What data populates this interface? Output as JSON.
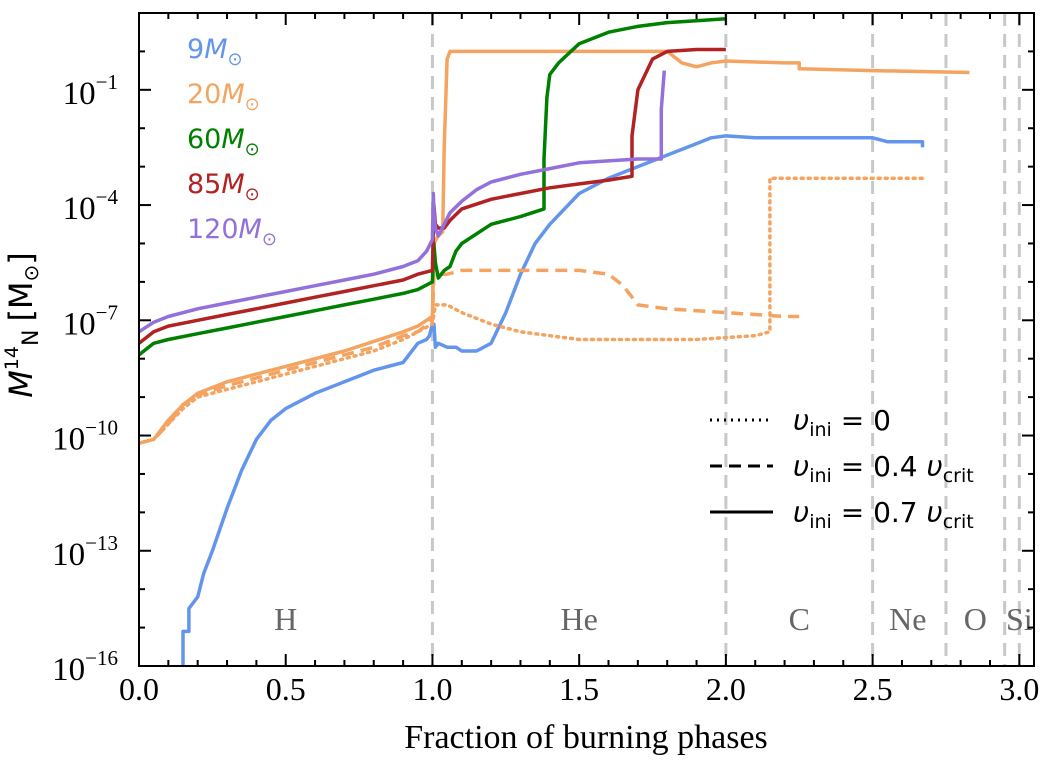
{
  "chart_data": {
    "type": "line",
    "title": "",
    "xlabel": "Fraction of burning phases",
    "ylabel": {
      "main": "M",
      "sub_sup": "14",
      "sub": "N",
      "unit": "[M",
      "unit_sub": "⊙",
      "close": "]"
    },
    "xlim": [
      0.0,
      3.05
    ],
    "ylim_log10": [
      -16,
      1
    ],
    "x_ticks": [
      {
        "v": 0.0,
        "label": "0.0"
      },
      {
        "v": 0.5,
        "label": "0.5"
      },
      {
        "v": 1.0,
        "label": "1.0"
      },
      {
        "v": 1.5,
        "label": "1.5"
      },
      {
        "v": 2.0,
        "label": "2.0"
      },
      {
        "v": 2.5,
        "label": "2.5"
      },
      {
        "v": 3.0,
        "label": "3.0"
      }
    ],
    "y_ticks": [
      {
        "v": -1,
        "base": "10",
        "exp": "−1"
      },
      {
        "v": -4,
        "base": "10",
        "exp": "−4"
      },
      {
        "v": -7,
        "base": "10",
        "exp": "−7"
      },
      {
        "v": -10,
        "base": "10",
        "exp": "−10"
      },
      {
        "v": -13,
        "base": "10",
        "exp": "−13"
      },
      {
        "v": -16,
        "base": "10",
        "exp": "−16"
      }
    ],
    "phase_boundaries": [
      1.0,
      2.0,
      2.5,
      2.75,
      2.95,
      3.0
    ],
    "phase_labels": [
      {
        "x": 0.5,
        "label": "H"
      },
      {
        "x": 1.5,
        "label": "He"
      },
      {
        "x": 2.25,
        "label": "C"
      },
      {
        "x": 2.62,
        "label": "Ne"
      },
      {
        "x": 2.85,
        "label": "O"
      },
      {
        "x": 3.0,
        "label": "Si"
      }
    ],
    "colors": {
      "m9": "#6495ED",
      "m20": "#F4A460",
      "m60": "#008000",
      "m85": "#B22222",
      "m120": "#9370DB",
      "boundary": "#c8c8c8",
      "phase_text": "#666666"
    },
    "mass_legend": [
      {
        "num": "9",
        "color": "#6495ED"
      },
      {
        "num": "20",
        "color": "#F4A460"
      },
      {
        "num": "60",
        "color": "#008000"
      },
      {
        "num": "85",
        "color": "#B22222"
      },
      {
        "num": "120",
        "color": "#9370DB"
      }
    ],
    "mass_unit": {
      "m": "M",
      "sub": "⊙"
    },
    "style_legend": [
      {
        "style": "dotted",
        "lhs": "υ",
        "lhs_sub": "ini",
        "eq": " = 0",
        "rhs": "",
        "rhs_sub": ""
      },
      {
        "style": "dashed",
        "lhs": "υ",
        "lhs_sub": "ini",
        "eq": " = 0.4 ",
        "rhs": "υ",
        "rhs_sub": "crit"
      },
      {
        "style": "solid",
        "lhs": "υ",
        "lhs_sub": "ini",
        "eq": " = 0.7 ",
        "rhs": "υ",
        "rhs_sub": "crit"
      }
    ],
    "series": [
      {
        "name": "9 Msun, v=0.7",
        "color": "#6495ED",
        "style": "solid",
        "points": [
          [
            0.15,
            -17
          ],
          [
            0.15,
            -15.1
          ],
          [
            0.17,
            -15.1
          ],
          [
            0.17,
            -14.5
          ],
          [
            0.2,
            -14.2
          ],
          [
            0.22,
            -13.6
          ],
          [
            0.25,
            -13.0
          ],
          [
            0.3,
            -11.9
          ],
          [
            0.35,
            -10.9
          ],
          [
            0.4,
            -10.1
          ],
          [
            0.45,
            -9.6
          ],
          [
            0.5,
            -9.3
          ],
          [
            0.6,
            -8.9
          ],
          [
            0.7,
            -8.6
          ],
          [
            0.8,
            -8.3
          ],
          [
            0.9,
            -8.1
          ],
          [
            0.95,
            -7.6
          ],
          [
            0.98,
            -7.5
          ],
          [
            0.99,
            -7.4
          ],
          [
            1.0,
            -7.1
          ],
          [
            1.005,
            -7.1
          ],
          [
            1.01,
            -7.7
          ],
          [
            1.02,
            -7.6
          ],
          [
            1.05,
            -7.7
          ],
          [
            1.08,
            -7.7
          ],
          [
            1.1,
            -7.8
          ],
          [
            1.15,
            -7.8
          ],
          [
            1.2,
            -7.6
          ],
          [
            1.25,
            -6.8
          ],
          [
            1.3,
            -5.8
          ],
          [
            1.35,
            -5.0
          ],
          [
            1.4,
            -4.5
          ],
          [
            1.5,
            -3.7
          ],
          [
            1.6,
            -3.3
          ],
          [
            1.7,
            -3.0
          ],
          [
            1.8,
            -2.7
          ],
          [
            1.9,
            -2.4
          ],
          [
            1.95,
            -2.25
          ],
          [
            2.0,
            -2.2
          ],
          [
            2.1,
            -2.25
          ],
          [
            2.3,
            -2.25
          ],
          [
            2.5,
            -2.25
          ],
          [
            2.55,
            -2.35
          ],
          [
            2.67,
            -2.35
          ],
          [
            2.67,
            -2.5
          ]
        ]
      },
      {
        "name": "20 Msun, v=0",
        "color": "#F4A460",
        "style": "dotted",
        "points": [
          [
            0.0,
            -10.2
          ],
          [
            0.05,
            -10.1
          ],
          [
            0.1,
            -9.7
          ],
          [
            0.15,
            -9.3
          ],
          [
            0.2,
            -9.0
          ],
          [
            0.3,
            -8.8
          ],
          [
            0.4,
            -8.6
          ],
          [
            0.5,
            -8.4
          ],
          [
            0.6,
            -8.2
          ],
          [
            0.7,
            -8.0
          ],
          [
            0.8,
            -7.8
          ],
          [
            0.9,
            -7.5
          ],
          [
            0.95,
            -7.3
          ],
          [
            1.0,
            -7.1
          ],
          [
            1.01,
            -6.6
          ],
          [
            1.05,
            -6.6
          ],
          [
            1.1,
            -6.8
          ],
          [
            1.2,
            -7.1
          ],
          [
            1.3,
            -7.3
          ],
          [
            1.4,
            -7.4
          ],
          [
            1.5,
            -7.5
          ],
          [
            1.6,
            -7.5
          ],
          [
            1.7,
            -7.5
          ],
          [
            1.8,
            -7.5
          ],
          [
            1.9,
            -7.5
          ],
          [
            2.0,
            -7.45
          ],
          [
            2.1,
            -7.4
          ],
          [
            2.15,
            -7.3
          ],
          [
            2.15,
            -3.3
          ],
          [
            2.3,
            -3.3
          ],
          [
            2.5,
            -3.3
          ],
          [
            2.67,
            -3.3
          ]
        ]
      },
      {
        "name": "20 Msun, v=0.4",
        "color": "#F4A460",
        "style": "dashed",
        "points": [
          [
            0.0,
            -10.2
          ],
          [
            0.05,
            -10.1
          ],
          [
            0.1,
            -9.7
          ],
          [
            0.15,
            -9.2
          ],
          [
            0.2,
            -8.95
          ],
          [
            0.3,
            -8.7
          ],
          [
            0.4,
            -8.5
          ],
          [
            0.5,
            -8.3
          ],
          [
            0.6,
            -8.1
          ],
          [
            0.7,
            -7.9
          ],
          [
            0.8,
            -7.7
          ],
          [
            0.9,
            -7.4
          ],
          [
            0.95,
            -7.3
          ],
          [
            1.0,
            -7.0
          ],
          [
            1.005,
            -5.8
          ],
          [
            1.02,
            -5.8
          ],
          [
            1.05,
            -5.8
          ],
          [
            1.1,
            -5.7
          ],
          [
            1.3,
            -5.7
          ],
          [
            1.5,
            -5.7
          ],
          [
            1.6,
            -5.8
          ],
          [
            1.65,
            -6.1
          ],
          [
            1.7,
            -6.6
          ],
          [
            1.8,
            -6.7
          ],
          [
            1.9,
            -6.75
          ],
          [
            2.0,
            -6.8
          ],
          [
            2.1,
            -6.85
          ],
          [
            2.2,
            -6.9
          ],
          [
            2.25,
            -6.9
          ]
        ]
      },
      {
        "name": "20 Msun, v=0.7",
        "color": "#F4A460",
        "style": "solid",
        "points": [
          [
            0.0,
            -10.2
          ],
          [
            0.05,
            -10.1
          ],
          [
            0.1,
            -9.6
          ],
          [
            0.15,
            -9.2
          ],
          [
            0.2,
            -8.9
          ],
          [
            0.3,
            -8.6
          ],
          [
            0.4,
            -8.4
          ],
          [
            0.5,
            -8.2
          ],
          [
            0.6,
            -8.0
          ],
          [
            0.7,
            -7.8
          ],
          [
            0.8,
            -7.55
          ],
          [
            0.9,
            -7.3
          ],
          [
            0.95,
            -7.15
          ],
          [
            1.0,
            -6.9
          ],
          [
            1.005,
            -5.0
          ],
          [
            1.02,
            -4.8
          ],
          [
            1.035,
            -4.7
          ],
          [
            1.04,
            -2.5
          ],
          [
            1.05,
            -0.2
          ],
          [
            1.06,
            0.0
          ],
          [
            1.2,
            0.0
          ],
          [
            1.5,
            0.0
          ],
          [
            1.8,
            0.0
          ],
          [
            1.85,
            -0.3
          ],
          [
            1.9,
            -0.4
          ],
          [
            1.95,
            -0.3
          ],
          [
            2.0,
            -0.25
          ],
          [
            2.2,
            -0.3
          ],
          [
            2.25,
            -0.3
          ],
          [
            2.25,
            -0.45
          ],
          [
            2.5,
            -0.5
          ],
          [
            2.83,
            -0.55
          ]
        ]
      },
      {
        "name": "60 Msun, v=0.7",
        "color": "#008000",
        "style": "solid",
        "points": [
          [
            0.0,
            -7.9
          ],
          [
            0.05,
            -7.6
          ],
          [
            0.1,
            -7.5
          ],
          [
            0.2,
            -7.35
          ],
          [
            0.3,
            -7.2
          ],
          [
            0.4,
            -7.05
          ],
          [
            0.5,
            -6.9
          ],
          [
            0.6,
            -6.75
          ],
          [
            0.7,
            -6.6
          ],
          [
            0.8,
            -6.45
          ],
          [
            0.9,
            -6.3
          ],
          [
            0.95,
            -6.2
          ],
          [
            1.0,
            -6.0
          ],
          [
            1.005,
            -5.0
          ],
          [
            1.01,
            -5.5
          ],
          [
            1.02,
            -5.9
          ],
          [
            1.04,
            -5.7
          ],
          [
            1.06,
            -5.6
          ],
          [
            1.08,
            -5.2
          ],
          [
            1.1,
            -5.0
          ],
          [
            1.2,
            -4.5
          ],
          [
            1.3,
            -4.3
          ],
          [
            1.38,
            -4.1
          ],
          [
            1.38,
            -2.8
          ],
          [
            1.39,
            -1.2
          ],
          [
            1.4,
            -0.6
          ],
          [
            1.43,
            -0.3
          ],
          [
            1.5,
            0.2
          ],
          [
            1.6,
            0.5
          ],
          [
            1.7,
            0.65
          ],
          [
            1.8,
            0.75
          ],
          [
            1.9,
            0.8
          ],
          [
            2.0,
            0.85
          ]
        ]
      },
      {
        "name": "85 Msun, v=0.7",
        "color": "#B22222",
        "style": "solid",
        "points": [
          [
            0.0,
            -7.6
          ],
          [
            0.05,
            -7.3
          ],
          [
            0.1,
            -7.15
          ],
          [
            0.2,
            -7.0
          ],
          [
            0.3,
            -6.85
          ],
          [
            0.4,
            -6.7
          ],
          [
            0.5,
            -6.55
          ],
          [
            0.6,
            -6.4
          ],
          [
            0.7,
            -6.25
          ],
          [
            0.8,
            -6.1
          ],
          [
            0.9,
            -5.95
          ],
          [
            0.95,
            -5.8
          ],
          [
            1.0,
            -5.7
          ],
          [
            1.005,
            -4.0
          ],
          [
            1.01,
            -4.5
          ],
          [
            1.02,
            -4.6
          ],
          [
            1.04,
            -4.6
          ],
          [
            1.06,
            -4.4
          ],
          [
            1.1,
            -4.1
          ],
          [
            1.2,
            -3.85
          ],
          [
            1.3,
            -3.7
          ],
          [
            1.4,
            -3.55
          ],
          [
            1.5,
            -3.45
          ],
          [
            1.6,
            -3.35
          ],
          [
            1.68,
            -3.25
          ],
          [
            1.68,
            -2.2
          ],
          [
            1.7,
            -1.0
          ],
          [
            1.75,
            -0.2
          ],
          [
            1.8,
            0.0
          ],
          [
            1.9,
            0.05
          ],
          [
            2.0,
            0.05
          ]
        ]
      },
      {
        "name": "120 Msun, v=0.7",
        "color": "#9370DB",
        "style": "solid",
        "points": [
          [
            0.0,
            -7.3
          ],
          [
            0.05,
            -7.05
          ],
          [
            0.1,
            -6.9
          ],
          [
            0.2,
            -6.7
          ],
          [
            0.3,
            -6.55
          ],
          [
            0.4,
            -6.4
          ],
          [
            0.5,
            -6.25
          ],
          [
            0.6,
            -6.1
          ],
          [
            0.7,
            -5.95
          ],
          [
            0.8,
            -5.8
          ],
          [
            0.9,
            -5.6
          ],
          [
            0.95,
            -5.45
          ],
          [
            0.98,
            -5.2
          ],
          [
            1.0,
            -4.9
          ],
          [
            1.003,
            -3.7
          ],
          [
            1.006,
            -4.3
          ],
          [
            1.01,
            -4.6
          ],
          [
            1.02,
            -4.8
          ],
          [
            1.04,
            -4.5
          ],
          [
            1.06,
            -4.2
          ],
          [
            1.1,
            -3.9
          ],
          [
            1.15,
            -3.6
          ],
          [
            1.2,
            -3.4
          ],
          [
            1.3,
            -3.2
          ],
          [
            1.4,
            -3.05
          ],
          [
            1.5,
            -2.9
          ],
          [
            1.6,
            -2.85
          ],
          [
            1.7,
            -2.8
          ],
          [
            1.78,
            -2.8
          ],
          [
            1.78,
            -1.5
          ],
          [
            1.79,
            -0.5
          ]
        ]
      }
    ]
  }
}
